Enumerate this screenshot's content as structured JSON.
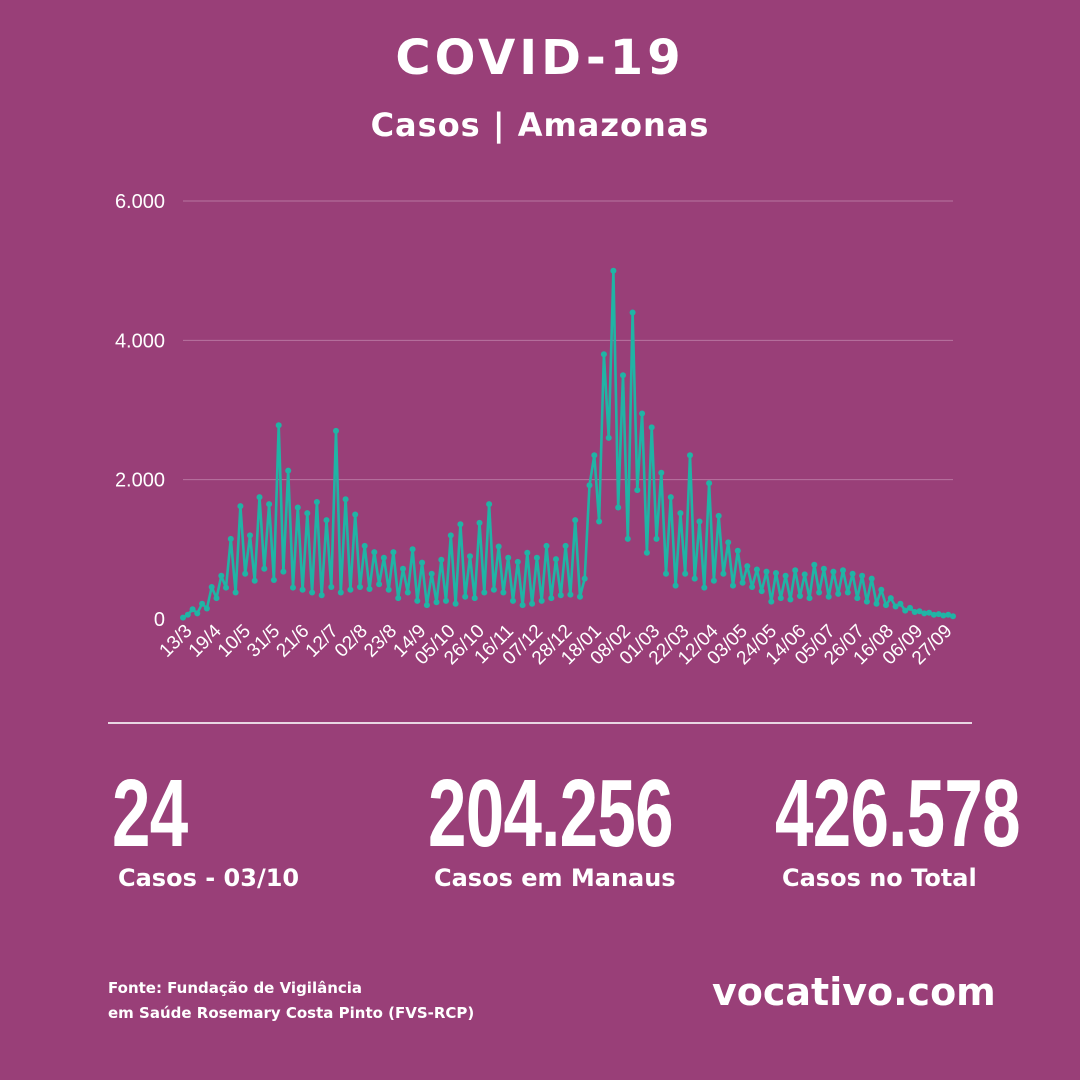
{
  "header": {
    "title": "COVID-19",
    "subtitle": "Casos | Amazonas"
  },
  "colors": {
    "background": "#993f78",
    "series": "#20b4a5",
    "text": "#ffffff",
    "grid": "#b874a0"
  },
  "chart_data": {
    "type": "line",
    "title": "",
    "xlabel": "",
    "ylabel": "",
    "ylim": [
      0,
      6000
    ],
    "grid": "horizontal",
    "y_ticks": [
      0,
      2000,
      4000,
      6000
    ],
    "y_tick_labels": [
      "0",
      "2.000",
      "4.000",
      "6.000"
    ],
    "x_tick_labels": [
      "13/3",
      "19/4",
      "10/5",
      "31/5",
      "21/6",
      "12/7",
      "02/8",
      "23/8",
      "14/9",
      "05/10",
      "26/10",
      "16/11",
      "07/12",
      "28/12",
      "18/01",
      "08/02",
      "01/03",
      "22/03",
      "12/04",
      "03/05",
      "24/05",
      "14/06",
      "05/07",
      "26/07",
      "16/08",
      "06/09",
      "27/09"
    ],
    "series": [
      {
        "name": "",
        "values": [
          20,
          60,
          140,
          80,
          220,
          150,
          460,
          300,
          620,
          450,
          1150,
          380,
          1620,
          650,
          1200,
          550,
          1750,
          720,
          1650,
          560,
          2780,
          680,
          2130,
          450,
          1600,
          420,
          1520,
          380,
          1680,
          340,
          1420,
          460,
          2700,
          380,
          1720,
          420,
          1500,
          460,
          1050,
          430,
          960,
          500,
          880,
          420,
          960,
          300,
          720,
          380,
          1000,
          260,
          810,
          200,
          650,
          240,
          850,
          260,
          1200,
          220,
          1360,
          320,
          900,
          300,
          1380,
          380,
          1650,
          420,
          1040,
          380,
          880,
          260,
          820,
          200,
          950,
          220,
          880,
          260,
          1050,
          300,
          860,
          340,
          1050,
          350,
          1420,
          320,
          580,
          1920,
          2350,
          1400,
          3800,
          2600,
          5000,
          1600,
          3500,
          1150,
          4400,
          1850,
          2950,
          950,
          2750,
          1150,
          2100,
          650,
          1750,
          480,
          1520,
          650,
          2350,
          580,
          1400,
          450,
          1950,
          550,
          1480,
          650,
          1100,
          480,
          980,
          520,
          760,
          460,
          710,
          400,
          680,
          250,
          660,
          300,
          620,
          280,
          700,
          330,
          640,
          300,
          780,
          380,
          720,
          320,
          680,
          360,
          700,
          380,
          650,
          300,
          620,
          250,
          580,
          220,
          420,
          200,
          300,
          180,
          220,
          120,
          160,
          100,
          110,
          80,
          90,
          60,
          70,
          50,
          60,
          40
        ]
      }
    ]
  },
  "stats": [
    {
      "value": "24",
      "label": "Casos - 03/10"
    },
    {
      "value": "204.256",
      "label": "Casos em Manaus"
    },
    {
      "value": "426.578",
      "label": "Casos no Total"
    }
  ],
  "footer": {
    "source_line1": "Fonte: Fundação de Vigilância",
    "source_line2": "em Saúde Rosemary Costa Pinto (FVS-RCP)",
    "brand": "vocativo.com"
  }
}
